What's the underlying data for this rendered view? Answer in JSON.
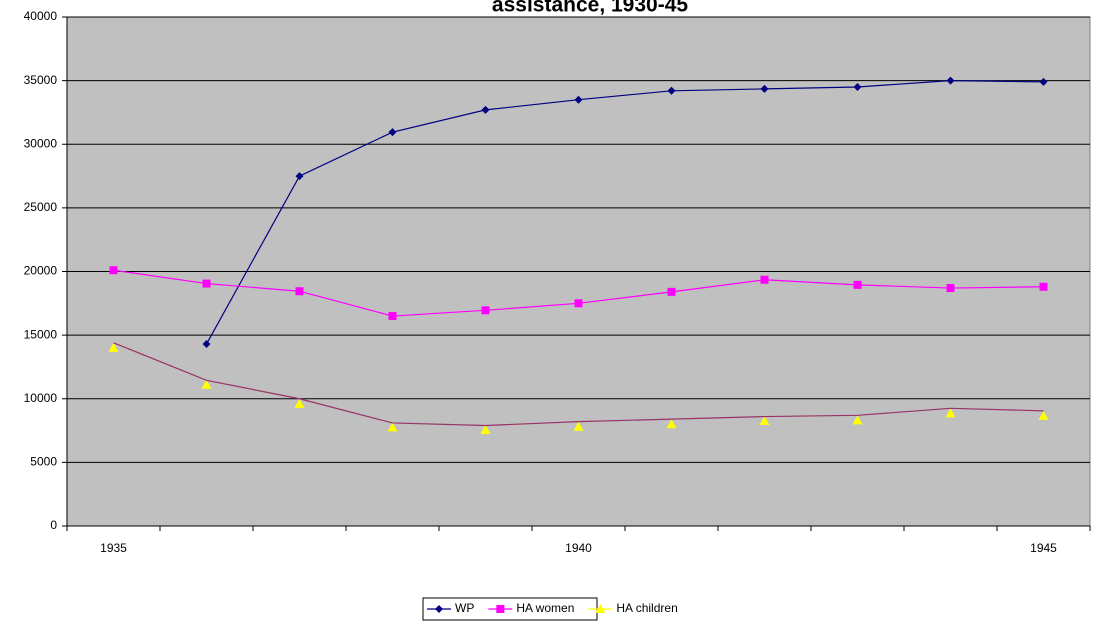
{
  "chart_data": {
    "type": "line",
    "title": "assistance, 1930-45",
    "categories": [
      "1935",
      null,
      null,
      null,
      null,
      "1940",
      null,
      null,
      null,
      null,
      "1945"
    ],
    "series": [
      {
        "name": "WP",
        "color": "#000080",
        "marker": "diamond",
        "line": true,
        "values": [
          null,
          14300,
          27500,
          30950,
          32700,
          33500,
          34200,
          34350,
          34500,
          35000,
          34900
        ]
      },
      {
        "name": "HA women",
        "color": "#ff00ff",
        "marker": "square",
        "line": true,
        "values": [
          20100,
          19050,
          18450,
          16500,
          16950,
          17500,
          18400,
          19350,
          18950,
          18700,
          18800
        ]
      },
      {
        "name": "HA children",
        "color": "#ffff00",
        "marker": "triangle",
        "line": false,
        "values": [
          14000,
          11100,
          9600,
          7750,
          7550,
          7800,
          8000,
          8250,
          8300,
          8850,
          8650
        ]
      },
      {
        "color": "#993366",
        "marker": "none",
        "line": true,
        "values": [
          14400,
          11450,
          10000,
          8100,
          7900,
          8200,
          8400,
          8600,
          8700,
          9250,
          9050
        ]
      }
    ],
    "ylim": [
      0,
      40000
    ],
    "yticks": [
      0,
      5000,
      10000,
      15000,
      20000,
      25000,
      30000,
      35000,
      40000
    ],
    "grid": true,
    "plot_background": "#c0c0c0",
    "legend": "bottom"
  }
}
